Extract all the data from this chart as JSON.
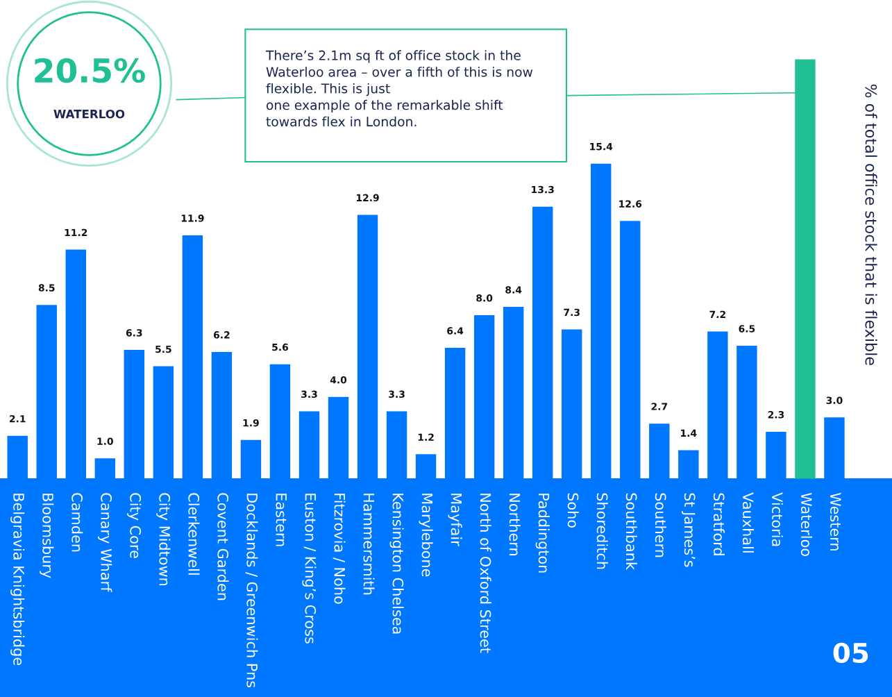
{
  "chart_data": {
    "type": "bar",
    "ylabel": "% of total office stock that is flexible",
    "categories": [
      "Belgravia Knightsbridge",
      "Bloomsbury",
      "Camden",
      "Canary Wharf",
      "City Core",
      "City Midtown",
      "Clerkenwell",
      "Covent Garden",
      "Docklands / Greenwich Pns",
      "Eastern",
      "Euston / King’s Cross",
      "Fitzrovia / Noho",
      "Hammersmith",
      "Kensington Chelsea",
      "Marylebone",
      "Mayfair",
      "North of Oxford Street",
      "Northern",
      "Paddington",
      "Soho",
      "Shoreditch",
      "Southbank",
      "Southern",
      "St James’s",
      "Stratford",
      "Vauxhall",
      "Victoria",
      "Waterloo",
      "Western"
    ],
    "values": [
      2.1,
      8.5,
      11.2,
      1.0,
      6.3,
      5.5,
      11.9,
      6.2,
      1.9,
      5.6,
      3.3,
      4.0,
      12.9,
      3.3,
      1.2,
      6.4,
      8.0,
      8.4,
      13.3,
      7.3,
      15.4,
      12.6,
      2.7,
      1.4,
      7.2,
      6.5,
      2.3,
      20.5,
      3.0
    ],
    "colors": [
      "#0077ff",
      "#0077ff",
      "#0077ff",
      "#0077ff",
      "#0077ff",
      "#0077ff",
      "#0077ff",
      "#0077ff",
      "#0077ff",
      "#0077ff",
      "#0077ff",
      "#0077ff",
      "#0077ff",
      "#0077ff",
      "#0077ff",
      "#0077ff",
      "#0077ff",
      "#0077ff",
      "#0077ff",
      "#0077ff",
      "#0077ff",
      "#0077ff",
      "#0077ff",
      "#0077ff",
      "#0077ff",
      "#0077ff",
      "#0077ff",
      "#20c094",
      "#0077ff"
    ],
    "value_labels": [
      "2.1",
      "8.5",
      "11.2",
      "1.0",
      "6.3",
      "5.5",
      "11.9",
      "6.2",
      "1.9",
      "5.6",
      "3.3",
      "4.0",
      "12.9",
      "3.3",
      "1.2",
      "6.4",
      "8.0",
      "8.4",
      "13.3",
      "7.3",
      "15.4",
      "12.6",
      "2.7",
      "1.4",
      "7.2",
      "6.5",
      "2.3",
      null,
      "3.0"
    ],
    "annotations": [
      "20.5%",
      "WATERLOO",
      "There’s 2.1m sq ft of office stock in the\nWaterloo area – over a fifth of this is now\nflexible. This is just\none example of the remarkable shift\ntowards flex in London.",
      "05"
    ],
    "grid": false
  }
}
